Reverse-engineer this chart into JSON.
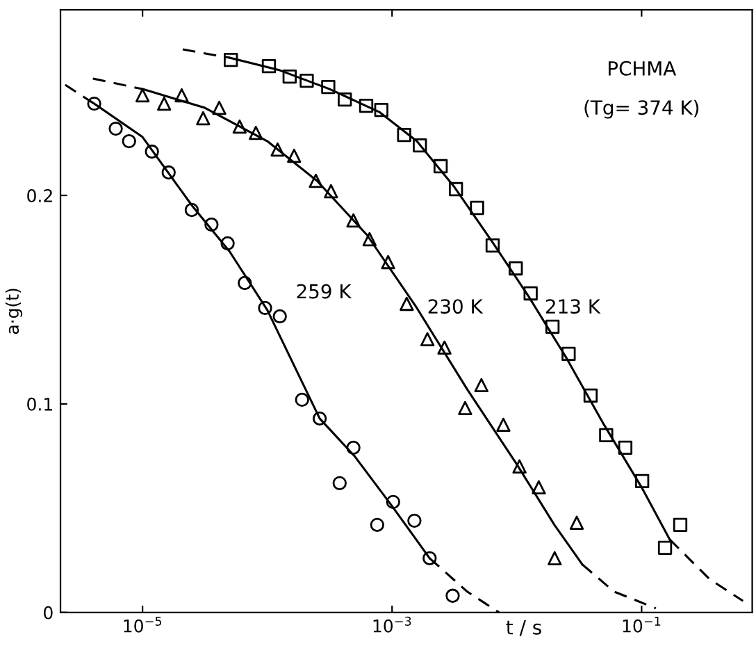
{
  "chart_data": {
    "type": "scatter",
    "xlabel": "t / s",
    "ylabel": "a·g(t)",
    "log": "x",
    "xlim": [
      2.2e-06,
      0.77
    ],
    "ylim": [
      0,
      0.289
    ],
    "xticks": [
      {
        "value": 1e-05,
        "label": "10$^{−5}$"
      },
      {
        "value": 0.001,
        "label": "10$^{−3}$"
      },
      {
        "value": 0.1,
        "label": "10$^{−1}$"
      }
    ],
    "yticks": [
      0,
      {
        "value": 0.1,
        "label": "0.1"
      },
      {
        "value": 0.2,
        "label": "0.2"
      }
    ],
    "grid": false,
    "legend": false,
    "annotations": [
      "259 K",
      "230 K",
      "213 K",
      "PCHMA",
      "(Tg= 374 K)"
    ],
    "series": [
      {
        "marker": "circle",
        "color": "#000000",
        "x": [
          4.1e-06,
          6.1e-06,
          7.8e-06,
          1.19e-05,
          1.62e-05,
          2.48e-05,
          3.57e-05,
          4.81e-05,
          6.6e-05,
          9.6e-05,
          0.000126,
          0.00019,
          0.000263,
          0.00038,
          0.00049,
          0.00076,
          0.00102,
          0.00151,
          0.002,
          0.00306
        ],
        "values": [
          0.244,
          0.232,
          0.226,
          0.221,
          0.211,
          0.193,
          0.186,
          0.177,
          0.158,
          0.146,
          0.142,
          0.102,
          0.093,
          0.062,
          0.079,
          0.042,
          0.053,
          0.044,
          0.026,
          0.008
        ]
      },
      {
        "marker": "triangle",
        "color": "#000000",
        "x": [
          1e-05,
          1.49e-05,
          2.06e-05,
          3.06e-05,
          4.12e-05,
          6e-05,
          8.1e-05,
          0.000121,
          0.000164,
          0.000245,
          0.000324,
          0.00049,
          0.00066,
          0.00093,
          0.00131,
          0.00192,
          0.00263,
          0.00385,
          0.0052,
          0.0078,
          0.0105,
          0.015,
          0.0201,
          0.0302
        ],
        "values": [
          0.248,
          0.244,
          0.248,
          0.237,
          0.242,
          0.233,
          0.23,
          0.222,
          0.219,
          0.207,
          0.202,
          0.188,
          0.179,
          0.168,
          0.148,
          0.131,
          0.127,
          0.098,
          0.109,
          0.09,
          0.07,
          0.06,
          0.026,
          0.043
        ]
      },
      {
        "marker": "square",
        "color": "#000000",
        "x": [
          5.1e-05,
          0.000103,
          0.000151,
          0.000207,
          0.000308,
          0.000418,
          0.00062,
          0.00082,
          0.00125,
          0.00167,
          0.00245,
          0.00325,
          0.0048,
          0.0064,
          0.0098,
          0.0129,
          0.0193,
          0.026,
          0.039,
          0.052,
          0.074,
          0.101,
          0.154,
          0.204
        ],
        "values": [
          0.265,
          0.262,
          0.257,
          0.255,
          0.252,
          0.246,
          0.243,
          0.241,
          0.229,
          0.224,
          0.214,
          0.203,
          0.194,
          0.176,
          0.165,
          0.153,
          0.137,
          0.124,
          0.104,
          0.085,
          0.079,
          0.063,
          0.031,
          0.042
        ]
      },
      {
        "type": "line",
        "line_style": "dashed",
        "color": "#000000",
        "x": [
          2.4e-06,
          4.1e-06
        ],
        "values": [
          0.253,
          0.244
        ]
      },
      {
        "type": "line",
        "line_style": "solid",
        "color": "#000000",
        "x": [
          4.1e-06,
          1e-05,
          2.5e-05,
          5e-05,
          0.0001,
          0.000263,
          0.0005,
          0.001,
          0.002
        ],
        "values": [
          0.244,
          0.228,
          0.195,
          0.173,
          0.145,
          0.093,
          0.075,
          0.051,
          0.026
        ]
      },
      {
        "type": "line",
        "line_style": "dashed",
        "color": "#000000",
        "x": [
          0.002,
          0.004,
          0.0072
        ],
        "values": [
          0.026,
          0.01,
          0.0
        ]
      },
      {
        "type": "line",
        "line_style": "dashed",
        "color": "#000000",
        "x": [
          4e-06,
          1e-05
        ],
        "values": [
          0.256,
          0.251
        ]
      },
      {
        "type": "line",
        "line_style": "solid",
        "color": "#000000",
        "x": [
          1e-05,
          3.16e-05,
          0.0001,
          0.00025,
          0.00063,
          0.00158,
          0.004,
          0.01,
          0.02,
          0.0335
        ],
        "values": [
          0.251,
          0.242,
          0.226,
          0.207,
          0.181,
          0.146,
          0.107,
          0.071,
          0.042,
          0.023
        ]
      },
      {
        "type": "line",
        "line_style": "dashed",
        "color": "#000000",
        "x": [
          0.0335,
          0.06,
          0.13
        ],
        "values": [
          0.023,
          0.01,
          0.002
        ]
      },
      {
        "type": "line",
        "line_style": "dashed",
        "color": "#000000",
        "x": [
          2.1e-05,
          5e-05
        ],
        "values": [
          0.27,
          0.266
        ]
      },
      {
        "type": "line",
        "line_style": "solid",
        "color": "#000000",
        "x": [
          5e-05,
          0.000126,
          0.000316,
          0.00079,
          0.00158,
          0.00316,
          0.0063,
          0.0126,
          0.025,
          0.05,
          0.1,
          0.168
        ],
        "values": [
          0.266,
          0.26,
          0.251,
          0.24,
          0.226,
          0.204,
          0.178,
          0.151,
          0.122,
          0.09,
          0.06,
          0.035
        ]
      },
      {
        "type": "line",
        "line_style": "dashed",
        "color": "#000000",
        "x": [
          0.168,
          0.35,
          0.65
        ],
        "values": [
          0.035,
          0.016,
          0.0055
        ]
      }
    ]
  }
}
